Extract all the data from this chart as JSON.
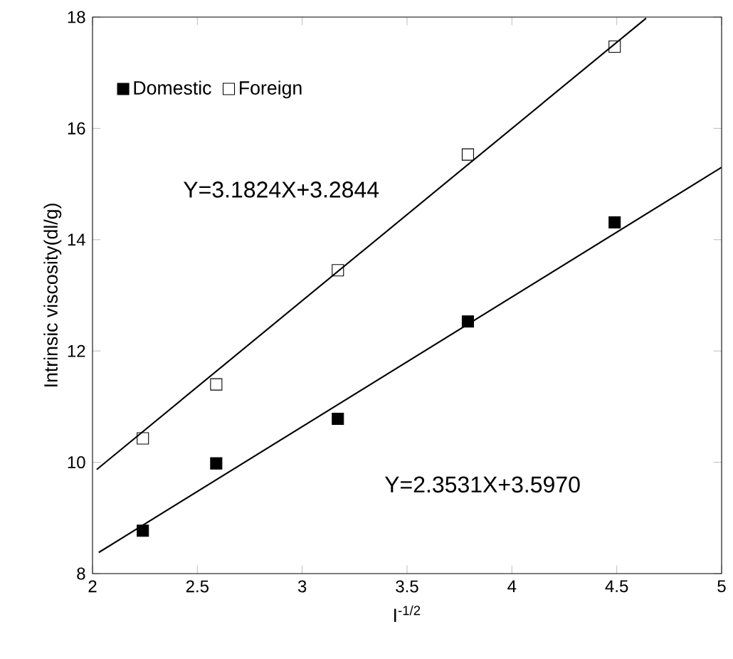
{
  "chart_data": {
    "type": "scatter",
    "xlabel": "I$^{-1/2}$",
    "ylabel": "Intrinsic viscosity(dl/g)",
    "xlim": [
      2,
      5
    ],
    "ylim": [
      8,
      18
    ],
    "xticks": [
      2,
      2.5,
      3,
      3.5,
      4,
      4.5,
      5
    ],
    "yticks": [
      8,
      10,
      12,
      14,
      16,
      18
    ],
    "legend": "top left",
    "series": [
      {
        "name": "Domestic",
        "color": "#000000",
        "marker": "square",
        "x": [
          2.24,
          2.59,
          3.17,
          3.79,
          4.49
        ],
        "values": [
          8.77,
          9.98,
          10.78,
          12.53,
          14.31
        ]
      },
      {
        "name": "Foreign",
        "color": "#000000",
        "marker": "square",
        "x": [
          2.24,
          2.59,
          3.17,
          3.79,
          4.49
        ],
        "values": [
          10.43,
          11.4,
          13.45,
          15.53,
          17.47
        ]
      },
      {
        "type": "line",
        "color": "#000000",
        "x": [
          2.03,
          5.0
        ],
        "values": [
          8.38,
          15.3
        ]
      },
      {
        "type": "line",
        "color": "#000000",
        "x": [
          2.02,
          4.64
        ],
        "values": [
          9.87,
          17.98
        ]
      }
    ],
    "annotations": [
      "Y=3.1824X+3.2844",
      "Y=2.3531X+3.5970"
    ]
  }
}
